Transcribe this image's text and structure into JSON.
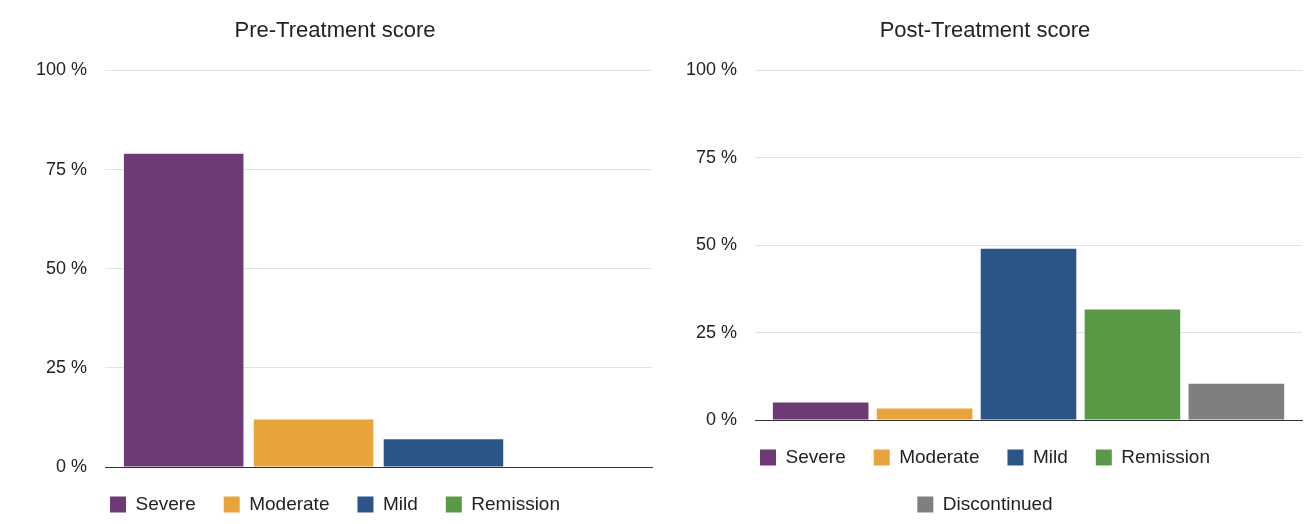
{
  "chart_data": [
    {
      "type": "bar",
      "title": "Pre-Treatment score",
      "categories": [
        null
      ],
      "series": [
        {
          "name": "Severe",
          "color": "#6d3a75",
          "values": [
            79
          ]
        },
        {
          "name": "Moderate",
          "color": "#e8a33b",
          "values": [
            12
          ]
        },
        {
          "name": "Mild",
          "color": "#2b5587",
          "values": [
            7
          ]
        },
        {
          "name": "Remission",
          "color": "#5a9a47",
          "values": [
            0
          ]
        }
      ],
      "ylim": [
        0,
        100
      ],
      "yticks": [
        {
          "value": 0,
          "label": "0 %"
        },
        {
          "value": 25,
          "label": "25 %"
        },
        {
          "value": 50,
          "label": "50 %"
        },
        {
          "value": 75,
          "label": "75 %"
        },
        {
          "value": 100,
          "label": "100 %"
        }
      ],
      "grid": "y",
      "legend": "bottom",
      "tick_labels": "y"
    },
    {
      "type": "bar",
      "title": "Post-Treatment score",
      "categories": [
        null
      ],
      "series": [
        {
          "name": "Severe",
          "color": "#6d3a75",
          "values": [
            5
          ]
        },
        {
          "name": "Moderate",
          "color": "#e8a33b",
          "values": [
            3.3
          ]
        },
        {
          "name": "Mild",
          "color": "#2b5587",
          "values": [
            49
          ]
        },
        {
          "name": "Remission",
          "color": "#5a9a47",
          "values": [
            31.6
          ]
        },
        {
          "name": "Discontinued",
          "color": "#7f7f7f",
          "values": [
            10.4
          ]
        }
      ],
      "ylim": [
        0,
        100
      ],
      "yticks": [
        {
          "value": 0,
          "label": "0 %"
        },
        {
          "value": 25,
          "label": "25 %"
        },
        {
          "value": 50,
          "label": "50 %"
        },
        {
          "value": 75,
          "label": "75 %"
        },
        {
          "value": 100,
          "label": "100 %"
        }
      ],
      "grid": "y",
      "legend": "bottom",
      "tick_labels": "y"
    }
  ]
}
